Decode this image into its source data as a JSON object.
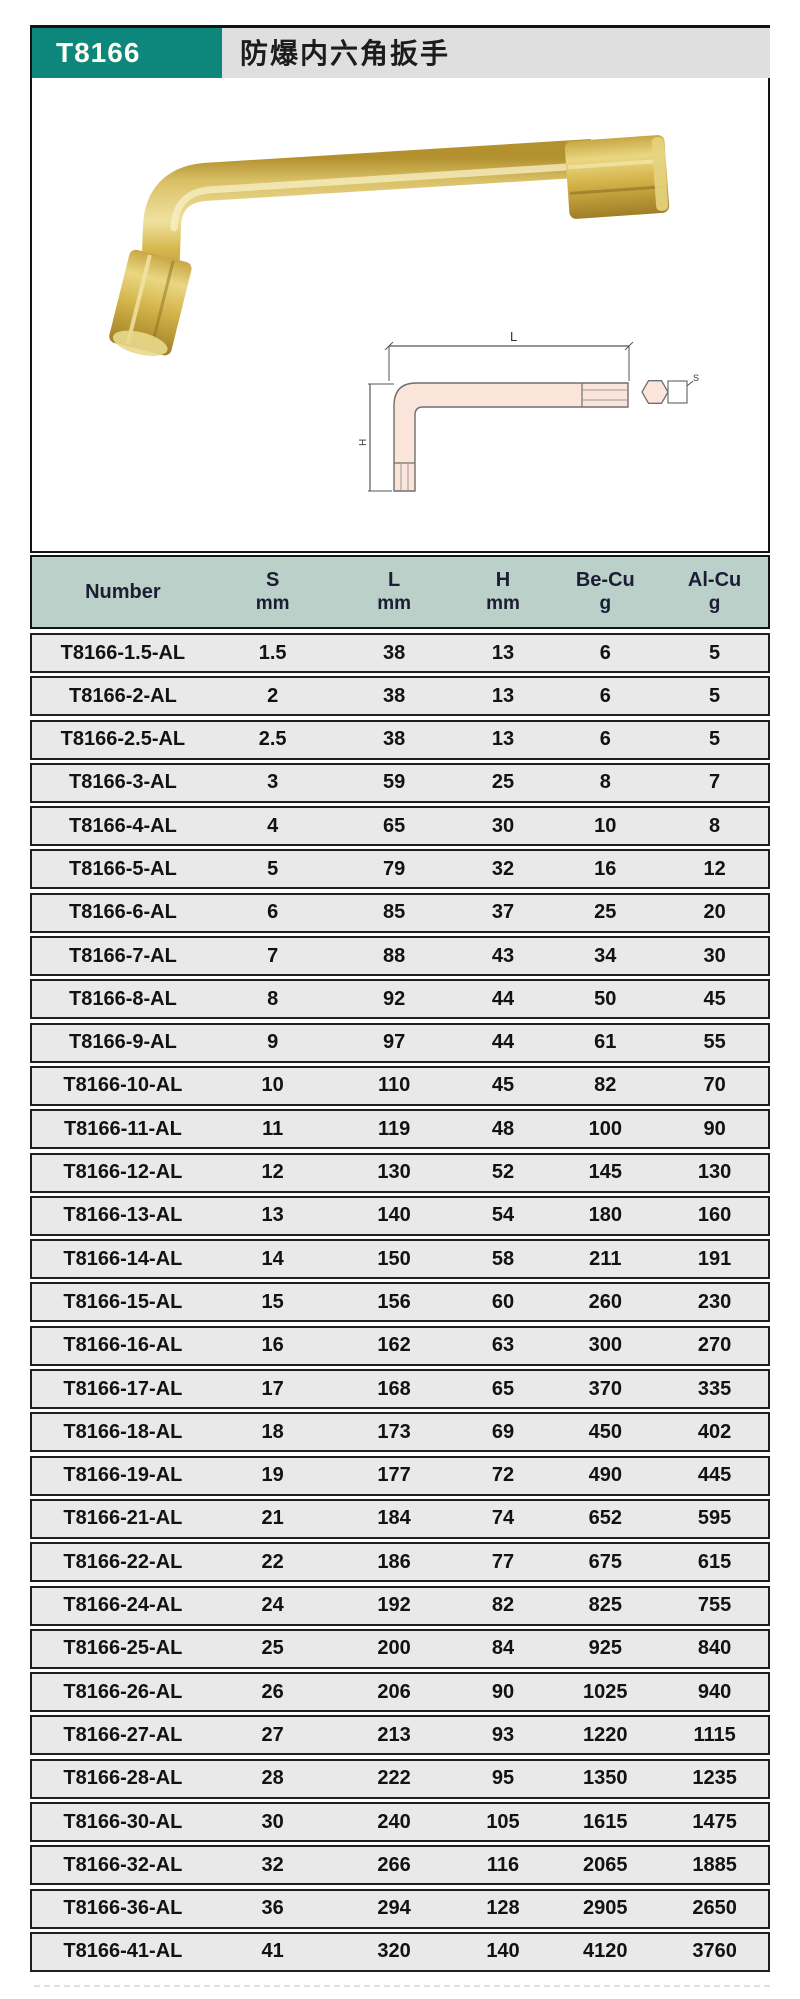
{
  "header": {
    "model": "T8166",
    "title": "防爆内六角扳手"
  },
  "diagram": {
    "length_label": "L",
    "height_label": "H",
    "size_label": "S"
  },
  "colors": {
    "brand_teal": "#0d867b",
    "table_head_bg": "#bad0c8",
    "row_bg": "#e9e9e9",
    "title_bar_bg": "#dfdfdf",
    "brass": "#c9a845",
    "drawing_fill": "#fbe4da"
  },
  "table": {
    "columns": [
      {
        "key": "number",
        "label": "Number",
        "unit": ""
      },
      {
        "key": "s",
        "label": "S",
        "unit": "mm"
      },
      {
        "key": "l",
        "label": "L",
        "unit": "mm"
      },
      {
        "key": "h",
        "label": "H",
        "unit": "mm"
      },
      {
        "key": "becu",
        "label": "Be-Cu",
        "unit": "g"
      },
      {
        "key": "alcu",
        "label": "Al-Cu",
        "unit": "g"
      }
    ],
    "rows": [
      [
        "T8166-1.5-AL",
        "1.5",
        "38",
        "13",
        "6",
        "5"
      ],
      [
        "T8166-2-AL",
        "2",
        "38",
        "13",
        "6",
        "5"
      ],
      [
        "T8166-2.5-AL",
        "2.5",
        "38",
        "13",
        "6",
        "5"
      ],
      [
        "T8166-3-AL",
        "3",
        "59",
        "25",
        "8",
        "7"
      ],
      [
        "T8166-4-AL",
        "4",
        "65",
        "30",
        "10",
        "8"
      ],
      [
        "T8166-5-AL",
        "5",
        "79",
        "32",
        "16",
        "12"
      ],
      [
        "T8166-6-AL",
        "6",
        "85",
        "37",
        "25",
        "20"
      ],
      [
        "T8166-7-AL",
        "7",
        "88",
        "43",
        "34",
        "30"
      ],
      [
        "T8166-8-AL",
        "8",
        "92",
        "44",
        "50",
        "45"
      ],
      [
        "T8166-9-AL",
        "9",
        "97",
        "44",
        "61",
        "55"
      ],
      [
        "T8166-10-AL",
        "10",
        "110",
        "45",
        "82",
        "70"
      ],
      [
        "T8166-11-AL",
        "11",
        "119",
        "48",
        "100",
        "90"
      ],
      [
        "T8166-12-AL",
        "12",
        "130",
        "52",
        "145",
        "130"
      ],
      [
        "T8166-13-AL",
        "13",
        "140",
        "54",
        "180",
        "160"
      ],
      [
        "T8166-14-AL",
        "14",
        "150",
        "58",
        "211",
        "191"
      ],
      [
        "T8166-15-AL",
        "15",
        "156",
        "60",
        "260",
        "230"
      ],
      [
        "T8166-16-AL",
        "16",
        "162",
        "63",
        "300",
        "270"
      ],
      [
        "T8166-17-AL",
        "17",
        "168",
        "65",
        "370",
        "335"
      ],
      [
        "T8166-18-AL",
        "18",
        "173",
        "69",
        "450",
        "402"
      ],
      [
        "T8166-19-AL",
        "19",
        "177",
        "72",
        "490",
        "445"
      ],
      [
        "T8166-21-AL",
        "21",
        "184",
        "74",
        "652",
        "595"
      ],
      [
        "T8166-22-AL",
        "22",
        "186",
        "77",
        "675",
        "615"
      ],
      [
        "T8166-24-AL",
        "24",
        "192",
        "82",
        "825",
        "755"
      ],
      [
        "T8166-25-AL",
        "25",
        "200",
        "84",
        "925",
        "840"
      ],
      [
        "T8166-26-AL",
        "26",
        "206",
        "90",
        "1025",
        "940"
      ],
      [
        "T8166-27-AL",
        "27",
        "213",
        "93",
        "1220",
        "1115"
      ],
      [
        "T8166-28-AL",
        "28",
        "222",
        "95",
        "1350",
        "1235"
      ],
      [
        "T8166-30-AL",
        "30",
        "240",
        "105",
        "1615",
        "1475"
      ],
      [
        "T8166-32-AL",
        "32",
        "266",
        "116",
        "2065",
        "1885"
      ],
      [
        "T8166-36-AL",
        "36",
        "294",
        "128",
        "2905",
        "2650"
      ],
      [
        "T8166-41-AL",
        "41",
        "320",
        "140",
        "4120",
        "3760"
      ]
    ]
  }
}
